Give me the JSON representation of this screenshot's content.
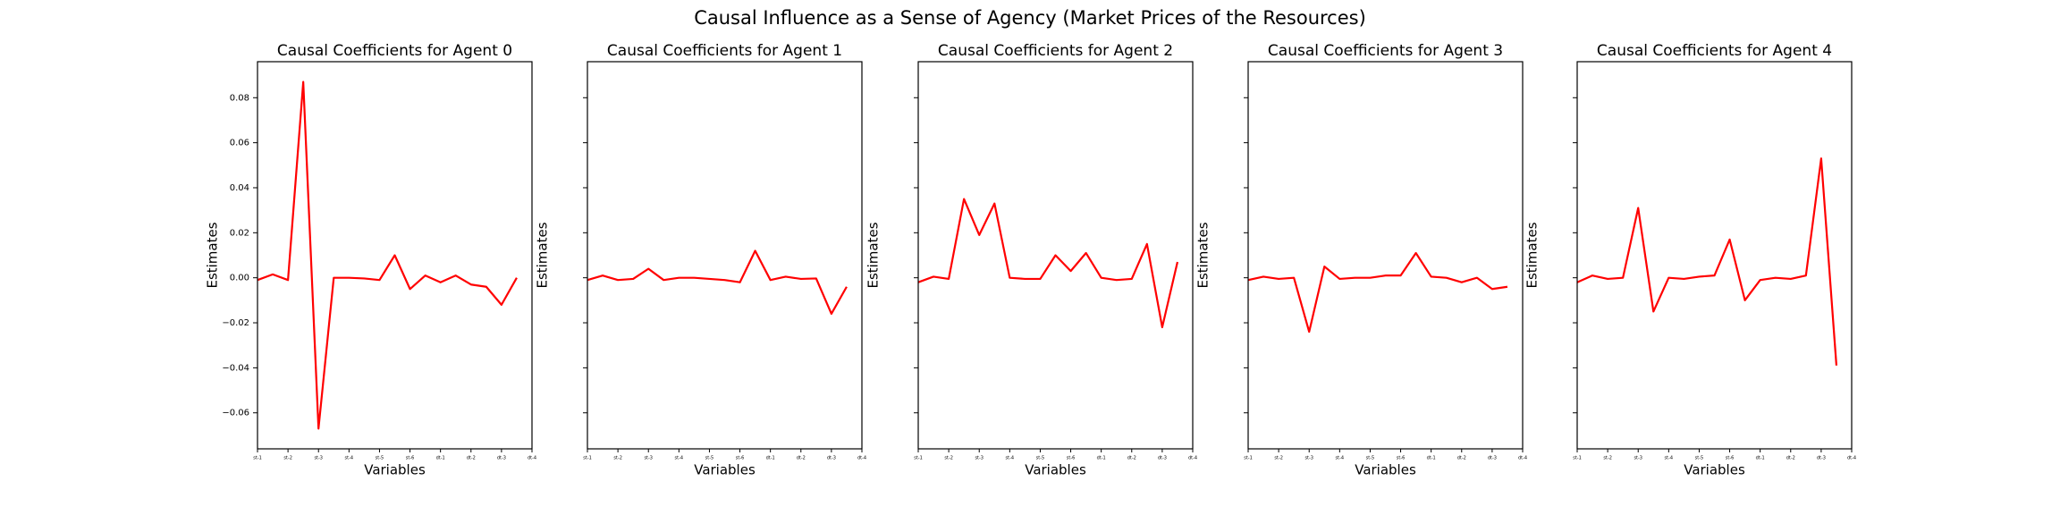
{
  "title": "Causal Influence as a Sense of Agency (Market Prices of the Resources)",
  "chart_data": [
    {
      "type": "line",
      "title": "Causal Coefficients for Agent 0",
      "xlabel": "Variables",
      "ylabel": "Estimates",
      "color": "#ff0000",
      "x": [
        0,
        1,
        2,
        3,
        4,
        5,
        6,
        7,
        8,
        9,
        10,
        11,
        12,
        13,
        14,
        15,
        16,
        17
      ],
      "values": [
        -0.001,
        0.0015,
        -0.001,
        0.087,
        -0.067,
        0.0,
        0.0,
        -0.0003,
        -0.001,
        0.01,
        -0.005,
        0.001,
        -0.002,
        0.001,
        -0.003,
        -0.004,
        -0.012,
        0.0
      ],
      "xlim": [
        0,
        18
      ],
      "xticks": [
        {
          "value": 0,
          "label": "st-1"
        },
        {
          "value": 2,
          "label": "st-2"
        },
        {
          "value": 4,
          "label": "st-3"
        },
        {
          "value": 6,
          "label": "st-4"
        },
        {
          "value": 8,
          "label": "st-5"
        },
        {
          "value": 10,
          "label": "st-6"
        },
        {
          "value": 12,
          "label": "dt-1"
        },
        {
          "value": 14,
          "label": "dt-2"
        },
        {
          "value": 16,
          "label": "dt-3"
        },
        {
          "value": 18,
          "label": "dt-4"
        }
      ],
      "ylim": [
        -0.076,
        0.096
      ],
      "yticks": [
        {
          "value": -0.06,
          "label": "−0.06"
        },
        {
          "value": -0.04,
          "label": "−0.04"
        },
        {
          "value": -0.02,
          "label": "−0.02"
        },
        {
          "value": 0,
          "label": "0.00"
        },
        0.02,
        0.04,
        0.06,
        0.08
      ]
    },
    {
      "type": "line",
      "title": "Causal Coefficients for Agent 1",
      "xlabel": "Variables",
      "ylabel": "Estimates",
      "color": "#ff0000",
      "x": [
        0,
        1,
        2,
        3,
        4,
        5,
        6,
        7,
        8,
        9,
        10,
        11,
        12,
        13,
        14,
        15,
        16,
        17
      ],
      "values": [
        -0.001,
        0.001,
        -0.001,
        -0.0005,
        0.004,
        -0.001,
        0.0,
        0.0,
        -0.0005,
        -0.001,
        -0.002,
        0.012,
        -0.001,
        0.0005,
        -0.0005,
        -0.0003,
        -0.016,
        -0.004
      ],
      "xlim": [
        0,
        18
      ],
      "xticks": [
        {
          "value": 0,
          "label": "st-1"
        },
        {
          "value": 2,
          "label": "st-2"
        },
        {
          "value": 4,
          "label": "st-3"
        },
        {
          "value": 6,
          "label": "st-4"
        },
        {
          "value": 8,
          "label": "st-5"
        },
        {
          "value": 10,
          "label": "st-6"
        },
        {
          "value": 12,
          "label": "dt-1"
        },
        {
          "value": 14,
          "label": "dt-2"
        },
        {
          "value": 16,
          "label": "dt-3"
        },
        {
          "value": 18,
          "label": "dt-4"
        }
      ],
      "ylim": [
        -0.076,
        0.096
      ],
      "yticks": [
        -0.06,
        -0.04,
        -0.02,
        0,
        0.02,
        0.04,
        0.06,
        0.08
      ]
    },
    {
      "type": "line",
      "title": "Causal Coefficients for Agent 2",
      "xlabel": "Variables",
      "ylabel": "Estimates",
      "color": "#ff0000",
      "x": [
        0,
        1,
        2,
        3,
        4,
        5,
        6,
        7,
        8,
        9,
        10,
        11,
        12,
        13,
        14,
        15,
        16,
        17
      ],
      "values": [
        -0.002,
        0.0005,
        -0.0005,
        0.035,
        0.019,
        0.033,
        0.0,
        -0.0005,
        -0.0005,
        0.01,
        0.003,
        0.011,
        0.0,
        -0.001,
        -0.0005,
        0.015,
        -0.022,
        0.007
      ],
      "xlim": [
        0,
        18
      ],
      "xticks": [
        {
          "value": 0,
          "label": "st-1"
        },
        {
          "value": 2,
          "label": "st-2"
        },
        {
          "value": 4,
          "label": "st-3"
        },
        {
          "value": 6,
          "label": "st-4"
        },
        {
          "value": 8,
          "label": "st-5"
        },
        {
          "value": 10,
          "label": "st-6"
        },
        {
          "value": 12,
          "label": "dt-1"
        },
        {
          "value": 14,
          "label": "dt-2"
        },
        {
          "value": 16,
          "label": "dt-3"
        },
        {
          "value": 18,
          "label": "dt-4"
        }
      ],
      "ylim": [
        -0.076,
        0.096
      ],
      "yticks": [
        -0.06,
        -0.04,
        -0.02,
        0,
        0.02,
        0.04,
        0.06,
        0.08
      ]
    },
    {
      "type": "line",
      "title": "Causal Coefficients for Agent 3",
      "xlabel": "Variables",
      "ylabel": "Estimates",
      "color": "#ff0000",
      "x": [
        0,
        1,
        2,
        3,
        4,
        5,
        6,
        7,
        8,
        9,
        10,
        11,
        12,
        13,
        14,
        15,
        16,
        17
      ],
      "values": [
        -0.001,
        0.0005,
        -0.0005,
        0.0,
        -0.024,
        0.005,
        -0.0005,
        0.0,
        0.0,
        0.001,
        0.001,
        0.011,
        0.0005,
        0.0,
        -0.002,
        0.0,
        -0.005,
        -0.004
      ],
      "xlim": [
        0,
        18
      ],
      "xticks": [
        {
          "value": 0,
          "label": "st-1"
        },
        {
          "value": 2,
          "label": "st-2"
        },
        {
          "value": 4,
          "label": "st-3"
        },
        {
          "value": 6,
          "label": "st-4"
        },
        {
          "value": 8,
          "label": "st-5"
        },
        {
          "value": 10,
          "label": "st-6"
        },
        {
          "value": 12,
          "label": "dt-1"
        },
        {
          "value": 14,
          "label": "dt-2"
        },
        {
          "value": 16,
          "label": "dt-3"
        },
        {
          "value": 18,
          "label": "dt-4"
        }
      ],
      "ylim": [
        -0.076,
        0.096
      ],
      "yticks": [
        -0.06,
        -0.04,
        -0.02,
        0,
        0.02,
        0.04,
        0.06,
        0.08
      ]
    },
    {
      "type": "line",
      "title": "Causal Coefficients for Agent 4",
      "xlabel": "Variables",
      "ylabel": "Estimates",
      "color": "#ff0000",
      "x": [
        0,
        1,
        2,
        3,
        4,
        5,
        6,
        7,
        8,
        9,
        10,
        11,
        12,
        13,
        14,
        15,
        16,
        17
      ],
      "values": [
        -0.002,
        0.001,
        -0.0005,
        0.0,
        0.031,
        -0.015,
        0.0,
        -0.0005,
        0.0005,
        0.001,
        0.017,
        -0.01,
        -0.001,
        0.0,
        -0.0005,
        0.001,
        0.053,
        -0.039
      ],
      "xlim": [
        0,
        18
      ],
      "xticks": [
        {
          "value": 0,
          "label": "st-1"
        },
        {
          "value": 2,
          "label": "st-2"
        },
        {
          "value": 4,
          "label": "st-3"
        },
        {
          "value": 6,
          "label": "st-4"
        },
        {
          "value": 8,
          "label": "st-5"
        },
        {
          "value": 10,
          "label": "st-6"
        },
        {
          "value": 12,
          "label": "dt-1"
        },
        {
          "value": 14,
          "label": "dt-2"
        },
        {
          "value": 16,
          "label": "dt-3"
        },
        {
          "value": 18,
          "label": "dt-4"
        }
      ],
      "ylim": [
        -0.076,
        0.096
      ],
      "yticks": [
        -0.06,
        -0.04,
        -0.02,
        0,
        0.02,
        0.04,
        0.06,
        0.08
      ]
    }
  ]
}
